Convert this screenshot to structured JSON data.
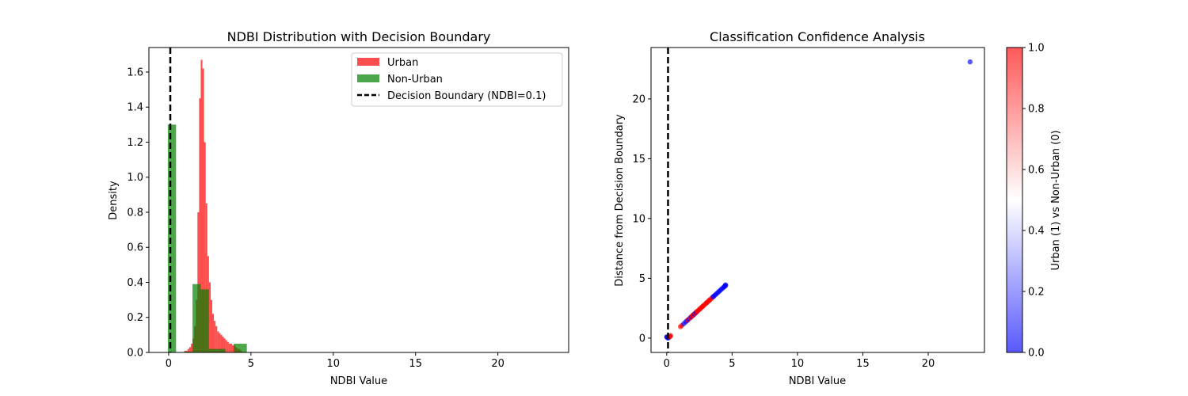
{
  "chart_data": [
    {
      "type": "histogram",
      "title": "NDBI Distribution with Decision Boundary",
      "xlabel": "NDBI Value",
      "ylabel": "Density",
      "xlim": [
        -1.2,
        24.3
      ],
      "ylim": [
        0,
        1.74
      ],
      "xticks": [
        0,
        5,
        10,
        15,
        20
      ],
      "yticks": [
        0.0,
        0.2,
        0.4,
        0.6,
        0.8,
        1.0,
        1.2,
        1.4,
        1.6
      ],
      "legend_position": "top-right",
      "boundary": {
        "x": 0.1,
        "label": "Decision Boundary (NDBI=0.1)",
        "style": "dashed",
        "color": "#000000"
      },
      "series": [
        {
          "name": "Urban",
          "color": "#ff0000",
          "opacity": 0.7,
          "bins": [
            [
              0.95,
              1.05,
              0.01
            ],
            [
              1.05,
              1.15,
              0.01
            ],
            [
              1.15,
              1.25,
              0.02
            ],
            [
              1.25,
              1.35,
              0.03
            ],
            [
              1.35,
              1.45,
              0.05
            ],
            [
              1.45,
              1.55,
              0.08
            ],
            [
              1.55,
              1.65,
              0.15
            ],
            [
              1.65,
              1.75,
              0.3
            ],
            [
              1.75,
              1.85,
              0.8
            ],
            [
              1.85,
              1.95,
              1.45
            ],
            [
              1.95,
              2.05,
              1.67
            ],
            [
              2.05,
              2.15,
              1.62
            ],
            [
              2.15,
              2.25,
              1.2
            ],
            [
              2.25,
              2.35,
              0.85
            ],
            [
              2.35,
              2.45,
              0.55
            ],
            [
              2.45,
              2.55,
              0.4
            ],
            [
              2.55,
              2.65,
              0.3
            ],
            [
              2.65,
              2.75,
              0.22
            ],
            [
              2.75,
              2.85,
              0.18
            ],
            [
              2.85,
              2.95,
              0.15
            ],
            [
              2.95,
              3.05,
              0.12
            ],
            [
              3.05,
              3.15,
              0.11
            ],
            [
              3.15,
              3.25,
              0.1
            ],
            [
              3.25,
              3.35,
              0.09
            ],
            [
              3.35,
              3.45,
              0.08
            ],
            [
              3.45,
              3.55,
              0.07
            ],
            [
              3.55,
              3.65,
              0.06
            ],
            [
              3.65,
              3.75,
              0.05
            ],
            [
              3.75,
              3.85,
              0.05
            ],
            [
              3.85,
              3.95,
              0.04
            ],
            [
              3.95,
              4.05,
              0.04
            ],
            [
              4.05,
              4.15,
              0.03
            ],
            [
              4.15,
              4.25,
              0.02
            ],
            [
              4.25,
              4.35,
              0.02
            ],
            [
              4.35,
              4.45,
              0.01
            ]
          ]
        },
        {
          "name": "Non-Urban",
          "color": "#008000",
          "opacity": 0.7,
          "bins": [
            [
              -0.05,
              0.45,
              1.3
            ],
            [
              0.45,
              0.95,
              0.0
            ],
            [
              0.95,
              1.45,
              0.005
            ],
            [
              1.45,
              1.95,
              0.39
            ],
            [
              1.95,
              2.45,
              0.36
            ],
            [
              2.45,
              2.95,
              0.02
            ],
            [
              2.95,
              3.45,
              0.02
            ],
            [
              3.45,
              3.95,
              0.0
            ],
            [
              3.95,
              4.45,
              0.05
            ],
            [
              4.45,
              4.75,
              0.05
            ]
          ]
        }
      ]
    },
    {
      "type": "scatter",
      "title": "Classification Confidence Analysis",
      "xlabel": "NDBI Value",
      "ylabel": "Distance from Decision Boundary",
      "xlim": [
        -1.2,
        24.3
      ],
      "ylim": [
        -1.2,
        24.3
      ],
      "xticks": [
        0,
        5,
        10,
        15,
        20
      ],
      "yticks": [
        0,
        5,
        10,
        15,
        20
      ],
      "boundary": {
        "x": 0.1,
        "style": "dashed",
        "color": "#000000"
      },
      "colormap": "bwr",
      "colorbar": {
        "label": "Urban (1) vs Non-Urban (0)",
        "ticks": [
          0.0,
          0.2,
          0.4,
          0.6,
          0.8,
          1.0
        ],
        "range": [
          0,
          1
        ]
      },
      "points": [
        [
          0.0,
          0.1,
          0
        ],
        [
          0.05,
          0.05,
          0
        ],
        [
          0.1,
          0.0,
          0
        ],
        [
          0.15,
          0.05,
          0
        ],
        [
          0.02,
          0.08,
          0
        ],
        [
          0.2,
          0.1,
          1
        ],
        [
          0.25,
          0.15,
          1
        ],
        [
          0.3,
          0.2,
          1
        ],
        [
          0.22,
          0.12,
          1
        ],
        [
          1.05,
          0.95,
          1
        ],
        [
          1.15,
          1.05,
          1
        ],
        [
          1.3,
          1.2,
          0
        ],
        [
          1.45,
          1.35,
          0
        ],
        [
          1.55,
          1.45,
          0
        ],
        [
          1.6,
          1.5,
          1
        ],
        [
          1.7,
          1.6,
          0
        ],
        [
          1.8,
          1.7,
          1
        ],
        [
          1.85,
          1.75,
          1
        ],
        [
          1.9,
          1.8,
          0
        ],
        [
          1.95,
          1.85,
          1
        ],
        [
          2.0,
          1.9,
          1
        ],
        [
          2.05,
          1.95,
          1
        ],
        [
          2.1,
          2.0,
          0
        ],
        [
          2.15,
          2.05,
          1
        ],
        [
          2.2,
          2.1,
          1
        ],
        [
          2.25,
          2.15,
          0
        ],
        [
          2.3,
          2.2,
          1
        ],
        [
          2.35,
          2.25,
          1
        ],
        [
          2.4,
          2.3,
          1
        ],
        [
          2.5,
          2.4,
          1
        ],
        [
          2.55,
          2.45,
          1
        ],
        [
          2.6,
          2.5,
          1
        ],
        [
          2.7,
          2.6,
          1
        ],
        [
          2.75,
          2.65,
          1
        ],
        [
          2.8,
          2.7,
          1
        ],
        [
          2.9,
          2.8,
          1
        ],
        [
          3.0,
          2.9,
          1
        ],
        [
          3.05,
          2.95,
          1
        ],
        [
          3.1,
          3.0,
          1
        ],
        [
          3.2,
          3.1,
          1
        ],
        [
          3.25,
          3.15,
          1
        ],
        [
          3.3,
          3.2,
          1
        ],
        [
          3.4,
          3.3,
          1
        ],
        [
          3.5,
          3.4,
          1
        ],
        [
          3.55,
          3.45,
          0
        ],
        [
          3.6,
          3.5,
          0
        ],
        [
          3.7,
          3.6,
          0
        ],
        [
          3.8,
          3.7,
          0
        ],
        [
          3.9,
          3.8,
          0
        ],
        [
          4.0,
          3.9,
          0
        ],
        [
          4.1,
          4.0,
          0
        ],
        [
          4.2,
          4.1,
          0
        ],
        [
          4.3,
          4.2,
          0
        ],
        [
          4.4,
          4.3,
          0
        ],
        [
          4.45,
          4.35,
          0
        ],
        [
          4.5,
          4.4,
          0
        ],
        [
          4.5,
          4.45,
          0
        ],
        [
          23.2,
          23.1,
          0
        ]
      ]
    }
  ]
}
